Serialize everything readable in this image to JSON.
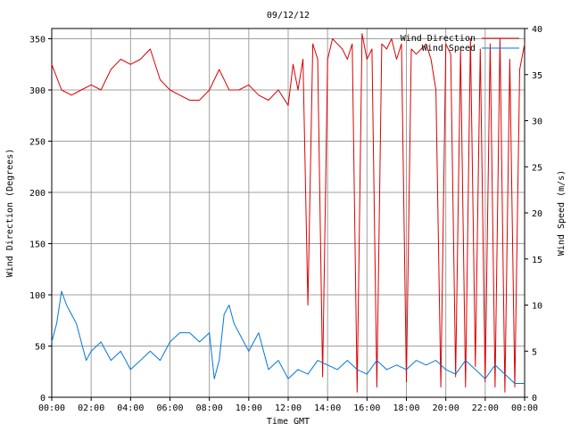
{
  "chart_data": {
    "type": "line",
    "title": "09/12/12",
    "xlabel": "Time GMT",
    "ylabel_left": "Wind Direction (Degrees)",
    "ylabel_right": "Wind Speed (m/s)",
    "x_unit": "hours GMT",
    "xlim": [
      0,
      24
    ],
    "ylim_left": [
      0,
      360
    ],
    "ylim_right": [
      0,
      40
    ],
    "x_ticks": [
      0,
      2,
      4,
      6,
      8,
      10,
      12,
      14,
      16,
      18,
      20,
      22,
      24
    ],
    "x_tick_labels": [
      "00:00",
      "02:00",
      "04:00",
      "06:00",
      "08:00",
      "10:00",
      "12:00",
      "14:00",
      "16:00",
      "18:00",
      "20:00",
      "22:00",
      "00:00"
    ],
    "y_left_ticks": [
      0,
      50,
      100,
      150,
      200,
      250,
      300,
      350
    ],
    "y_left_tick_labels": [
      "0",
      "50",
      "100",
      "150",
      "200",
      "250",
      "300",
      "350"
    ],
    "y_right_ticks": [
      0,
      5,
      10,
      15,
      20,
      25,
      30,
      35,
      40
    ],
    "y_right_tick_labels": [
      "0",
      "5",
      "10",
      "15",
      "20",
      "25",
      "30",
      "35",
      "40"
    ],
    "grid": true,
    "legend_position": "top-right",
    "series": [
      {
        "name": "Wind Direction",
        "axis": "left",
        "color": "#dd0000",
        "x": [
          0.0,
          0.5,
          1.0,
          1.5,
          2.0,
          2.5,
          3.0,
          3.5,
          4.0,
          4.5,
          5.0,
          5.5,
          6.0,
          6.5,
          7.0,
          7.5,
          8.0,
          8.5,
          9.0,
          9.5,
          10.0,
          10.5,
          11.0,
          11.5,
          12.0,
          12.25,
          12.5,
          12.75,
          13.0,
          13.25,
          13.5,
          13.75,
          14.0,
          14.25,
          14.5,
          14.75,
          15.0,
          15.25,
          15.5,
          15.75,
          16.0,
          16.25,
          16.5,
          16.75,
          17.0,
          17.25,
          17.5,
          17.75,
          18.0,
          18.25,
          18.5,
          18.75,
          19.0,
          19.25,
          19.5,
          19.75,
          20.0,
          20.25,
          20.5,
          20.75,
          21.0,
          21.25,
          21.5,
          21.75,
          22.0,
          22.25,
          22.5,
          22.75,
          23.0,
          23.25,
          23.5,
          23.75,
          24.0
        ],
        "values": [
          325,
          300,
          295,
          300,
          305,
          300,
          320,
          330,
          325,
          330,
          340,
          310,
          300,
          295,
          290,
          290,
          300,
          320,
          300,
          300,
          305,
          295,
          290,
          300,
          285,
          325,
          300,
          330,
          90,
          345,
          330,
          20,
          330,
          350,
          345,
          340,
          330,
          345,
          5,
          355,
          330,
          340,
          10,
          345,
          340,
          350,
          330,
          345,
          15,
          340,
          335,
          340,
          345,
          330,
          300,
          10,
          345,
          335,
          20,
          340,
          10,
          350,
          30,
          340,
          15,
          345,
          10,
          350,
          5,
          330,
          10,
          320,
          345
        ]
      },
      {
        "name": "Wind Speed",
        "axis": "right",
        "color": "#0077dd",
        "x": [
          0.0,
          0.25,
          0.5,
          0.75,
          1.0,
          1.25,
          1.5,
          1.75,
          2.0,
          2.5,
          3.0,
          3.5,
          4.0,
          4.5,
          5.0,
          5.5,
          6.0,
          6.5,
          7.0,
          7.5,
          8.0,
          8.25,
          8.5,
          8.75,
          9.0,
          9.25,
          9.5,
          10.0,
          10.5,
          11.0,
          11.5,
          12.0,
          12.5,
          13.0,
          13.5,
          14.0,
          14.5,
          15.0,
          15.5,
          16.0,
          16.5,
          17.0,
          17.5,
          18.0,
          18.5,
          19.0,
          19.5,
          20.0,
          20.5,
          21.0,
          21.5,
          22.0,
          22.5,
          23.0,
          23.5,
          24.0
        ],
        "values": [
          6,
          8,
          11.5,
          10,
          9,
          8,
          6,
          4,
          5,
          6,
          4,
          5,
          3,
          4,
          5,
          4,
          6,
          7,
          7,
          6,
          7,
          2,
          4,
          9,
          10,
          8,
          7,
          5,
          7,
          3,
          4,
          2,
          3,
          2.5,
          4,
          3.5,
          3,
          4,
          3,
          2.5,
          4,
          3,
          3.5,
          3,
          4,
          3.5,
          4,
          3,
          2.5,
          4,
          3,
          2,
          3.5,
          2.5,
          1.5,
          1.5
        ]
      }
    ]
  }
}
